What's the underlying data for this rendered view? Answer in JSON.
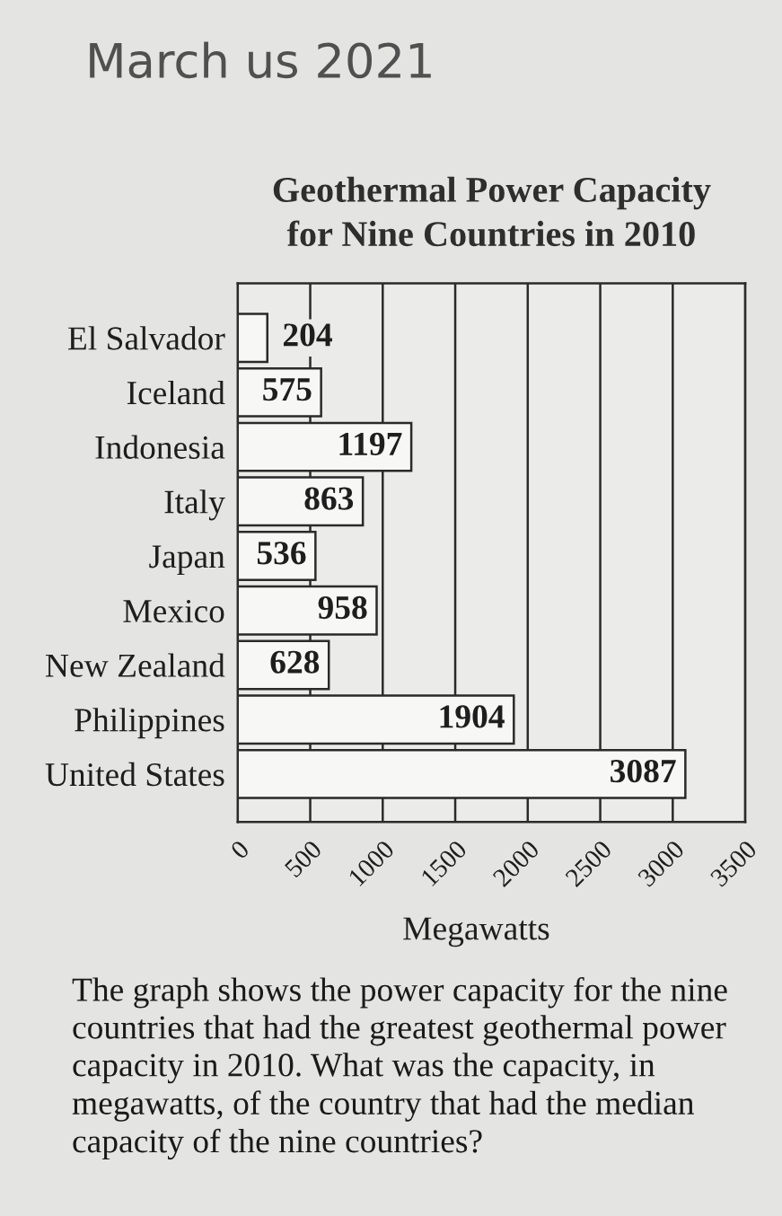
{
  "chart_data": {
    "type": "bar",
    "orientation": "horizontal",
    "title": "Geothermal Power Capacity\nfor Nine Countries in 2010",
    "xlabel": "Megawatts",
    "categories": [
      "El Salvador",
      "Iceland",
      "Indonesia",
      "Italy",
      "Japan",
      "Mexico",
      "New Zealand",
      "Philippines",
      "United States"
    ],
    "values": [
      204,
      575,
      1197,
      863,
      536,
      958,
      628,
      1904,
      3087
    ],
    "color": "#f7f7f5",
    "xlim": [
      0,
      3500
    ],
    "xticks": [
      0,
      500,
      1000,
      1500,
      2000,
      2500,
      3000,
      3500
    ],
    "grid": "x",
    "data_labels": true,
    "annotations": [
      "March us 2021",
      "The graph shows the power capacity for the nine countries that had the greatest geothermal power capacity in 2010. What was the capacity, in megawatts, of the country that had the median capacity of the nine countries?"
    ]
  }
}
